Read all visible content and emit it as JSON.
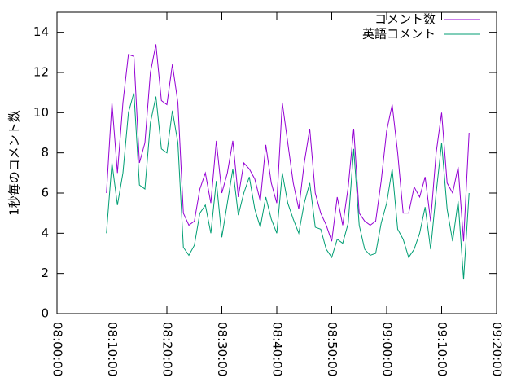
{
  "chart_data": {
    "type": "line",
    "ylabel": "1秒毎のコメント数",
    "x": [
      "08:09:00",
      "08:10:00",
      "08:11:00",
      "08:12:00",
      "08:13:00",
      "08:14:00",
      "08:15:00",
      "08:16:00",
      "08:17:00",
      "08:18:00",
      "08:19:00",
      "08:20:00",
      "08:21:00",
      "08:22:00",
      "08:23:00",
      "08:24:00",
      "08:25:00",
      "08:26:00",
      "08:27:00",
      "08:28:00",
      "08:29:00",
      "08:30:00",
      "08:31:00",
      "08:32:00",
      "08:33:00",
      "08:34:00",
      "08:35:00",
      "08:36:00",
      "08:37:00",
      "08:38:00",
      "08:39:00",
      "08:40:00",
      "08:41:00",
      "08:42:00",
      "08:43:00",
      "08:44:00",
      "08:45:00",
      "08:46:00",
      "08:47:00",
      "08:48:00",
      "08:49:00",
      "08:50:00",
      "08:51:00",
      "08:52:00",
      "08:53:00",
      "08:54:00",
      "08:55:00",
      "08:56:00",
      "08:57:00",
      "08:58:00",
      "08:59:00",
      "09:00:00",
      "09:01:00",
      "09:02:00",
      "09:03:00",
      "09:04:00",
      "09:05:00",
      "09:06:00",
      "09:07:00",
      "09:08:00",
      "09:09:00",
      "09:10:00",
      "09:11:00",
      "09:12:00",
      "09:13:00",
      "09:14:00",
      "09:15:00"
    ],
    "series": [
      {
        "name": "コメント数",
        "color": "#9400d3",
        "values": [
          6.0,
          10.5,
          7.0,
          10.5,
          12.9,
          12.8,
          7.5,
          8.5,
          12.0,
          13.4,
          10.6,
          10.4,
          12.4,
          10.5,
          5.0,
          4.4,
          4.6,
          6.2,
          7.0,
          5.5,
          8.6,
          6.0,
          7.0,
          8.6,
          5.8,
          7.5,
          7.2,
          6.7,
          5.6,
          8.4,
          6.5,
          5.5,
          10.5,
          8.5,
          6.5,
          5.2,
          7.5,
          9.2,
          6.0,
          5.0,
          4.4,
          3.6,
          5.8,
          4.4,
          6.3,
          9.2,
          5.0,
          4.6,
          4.4,
          4.6,
          6.6,
          9.1,
          10.4,
          8.0,
          5.0,
          5.0,
          6.3,
          5.8,
          6.8,
          4.6,
          8.0,
          10.0,
          6.5,
          6.0,
          7.3,
          3.6,
          9.0
        ]
      },
      {
        "name": "英語コメント",
        "color": "#009e73",
        "values": [
          4.0,
          7.5,
          5.4,
          7.0,
          10.0,
          11.0,
          6.4,
          6.2,
          9.5,
          10.8,
          8.2,
          8.0,
          10.1,
          8.5,
          3.3,
          2.9,
          3.4,
          5.0,
          5.4,
          4.0,
          6.6,
          3.8,
          5.5,
          7.2,
          4.9,
          6.0,
          6.8,
          5.2,
          4.3,
          5.8,
          4.7,
          4.0,
          7.0,
          5.5,
          4.7,
          4.0,
          5.5,
          6.5,
          4.3,
          4.2,
          3.2,
          2.8,
          3.7,
          3.5,
          4.5,
          8.2,
          4.4,
          3.2,
          2.9,
          3.0,
          4.5,
          5.5,
          7.2,
          4.2,
          3.7,
          2.8,
          3.2,
          4.0,
          5.3,
          3.2,
          6.0,
          8.5,
          5.2,
          3.6,
          5.6,
          1.7,
          6.0
        ]
      }
    ],
    "xlim": [
      "08:00:00",
      "09:20:00"
    ],
    "xticks": [
      "08:00:00",
      "08:10:00",
      "08:20:00",
      "08:30:00",
      "08:40:00",
      "08:50:00",
      "09:00:00",
      "09:10:00",
      "09:20:00"
    ],
    "ylim": [
      0,
      15
    ],
    "yticks": [
      0,
      2,
      4,
      6,
      8,
      10,
      12,
      14
    ],
    "legend": "top-right"
  }
}
